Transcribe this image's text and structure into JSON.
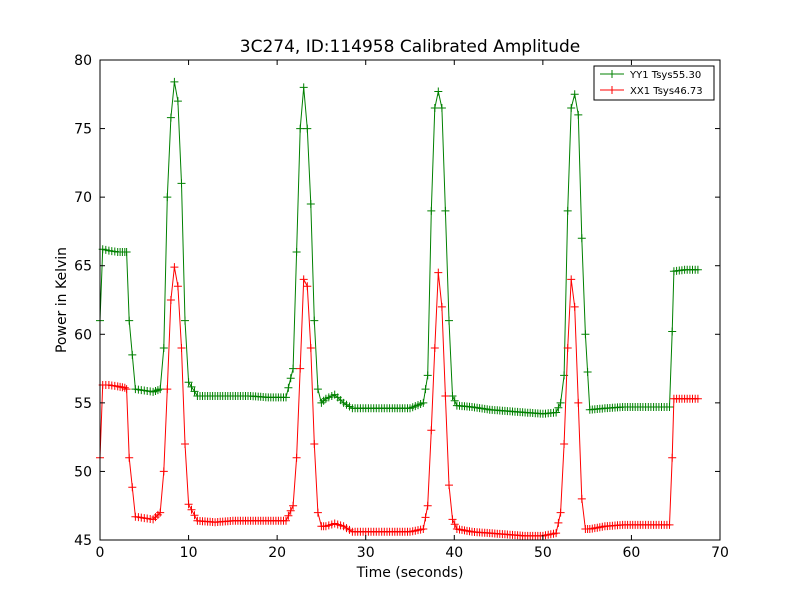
{
  "chart_data": {
    "type": "line",
    "title": "3C274, ID:114958 Calibrated Amplitude",
    "xlabel": "Time (seconds)",
    "ylabel": "Power in Kelvin",
    "xlim": [
      0,
      70
    ],
    "ylim": [
      45,
      80
    ],
    "xticks": [
      0,
      10,
      20,
      30,
      40,
      50,
      60,
      70
    ],
    "yticks": [
      45,
      50,
      55,
      60,
      65,
      70,
      75,
      80
    ],
    "grid": false,
    "legend_position": "top-right",
    "marker": "plus",
    "series": [
      {
        "name": "YY1 Tsys55.30",
        "color": "#008000",
        "x": [
          0,
          0.3,
          1.0,
          2.0,
          2.8,
          3.0,
          3.3,
          4.0,
          5.0,
          6.0,
          6.8,
          7.2,
          7.6,
          8.0,
          8.4,
          8.8,
          9.2,
          9.6,
          10.0,
          11.0,
          13.0,
          15.0,
          17.0,
          19.0,
          21.0,
          21.8,
          22.2,
          22.6,
          23.0,
          23.4,
          23.8,
          24.2,
          24.6,
          25.0,
          25.5,
          26.5,
          27.5,
          28.5,
          30.0,
          33.0,
          35.0,
          36.5,
          37.0,
          37.4,
          37.8,
          38.2,
          38.6,
          39.0,
          39.4,
          39.8,
          40.3,
          42.0,
          44.0,
          46.0,
          48.0,
          50.0,
          51.5,
          52.0,
          52.4,
          52.8,
          53.2,
          53.6,
          54.0,
          54.4,
          54.8,
          55.3,
          57.0,
          59.0,
          61.0,
          62.5,
          64.3,
          64.6,
          64.8,
          66.0,
          67.5
        ],
        "y": [
          61,
          66.2,
          66.1,
          66.0,
          66.0,
          66.0,
          61.0,
          56.0,
          55.9,
          55.8,
          56.0,
          59.0,
          70.0,
          75.8,
          78.4,
          77.0,
          71.0,
          61.0,
          56.5,
          55.5,
          55.5,
          55.5,
          55.5,
          55.4,
          55.4,
          57.5,
          66.0,
          75.0,
          78.0,
          75.0,
          69.5,
          61.0,
          56.0,
          55.0,
          55.3,
          55.6,
          55.0,
          54.6,
          54.6,
          54.6,
          54.6,
          55.0,
          57.0,
          69.0,
          76.5,
          77.7,
          76.5,
          69.0,
          61.0,
          55.5,
          54.8,
          54.7,
          54.5,
          54.4,
          54.3,
          54.2,
          54.3,
          55.0,
          57.0,
          69.0,
          76.5,
          77.5,
          76.0,
          67.0,
          60.0,
          54.5,
          54.6,
          54.7,
          54.7,
          54.7,
          54.7,
          60.2,
          64.6,
          64.7,
          64.7
        ]
      },
      {
        "name": "XX1 Tsys46.73",
        "color": "#ff0000",
        "x": [
          0,
          0.3,
          1.0,
          2.0,
          2.8,
          3.0,
          3.3,
          4.0,
          5.0,
          6.0,
          6.8,
          7.2,
          7.6,
          8.0,
          8.4,
          8.8,
          9.2,
          9.6,
          10.0,
          11.0,
          13.0,
          15.0,
          17.0,
          19.0,
          21.0,
          21.8,
          22.2,
          22.6,
          23.0,
          23.4,
          23.8,
          24.2,
          24.6,
          25.0,
          25.5,
          26.5,
          27.5,
          28.5,
          30.0,
          33.0,
          35.0,
          36.5,
          37.0,
          37.4,
          37.8,
          38.2,
          38.6,
          39.0,
          39.4,
          39.8,
          40.3,
          42.0,
          44.0,
          46.0,
          48.0,
          50.0,
          51.5,
          52.0,
          52.4,
          52.8,
          53.2,
          53.6,
          54.0,
          54.4,
          54.8,
          55.3,
          57.0,
          59.0,
          61.0,
          62.5,
          64.3,
          64.6,
          64.8,
          66.0,
          67.5
        ],
        "y": [
          51,
          56.3,
          56.3,
          56.2,
          56.1,
          56.0,
          51.0,
          46.7,
          46.6,
          46.5,
          47.0,
          50.0,
          56.0,
          62.5,
          64.9,
          63.5,
          59.0,
          52.0,
          47.6,
          46.4,
          46.3,
          46.4,
          46.4,
          46.4,
          46.4,
          47.5,
          51.0,
          57.5,
          64.0,
          63.5,
          59.0,
          52.0,
          47.0,
          46.0,
          46.0,
          46.2,
          46.0,
          45.6,
          45.6,
          45.6,
          45.6,
          45.8,
          47.5,
          53.0,
          59.0,
          64.5,
          62.0,
          55.5,
          49.0,
          46.5,
          45.8,
          45.6,
          45.5,
          45.4,
          45.3,
          45.3,
          45.5,
          47.0,
          52.0,
          59.0,
          64.0,
          62.0,
          55.0,
          48.0,
          45.8,
          45.8,
          46.0,
          46.1,
          46.1,
          46.1,
          46.1,
          51.0,
          55.3,
          55.3,
          55.3
        ]
      }
    ]
  }
}
